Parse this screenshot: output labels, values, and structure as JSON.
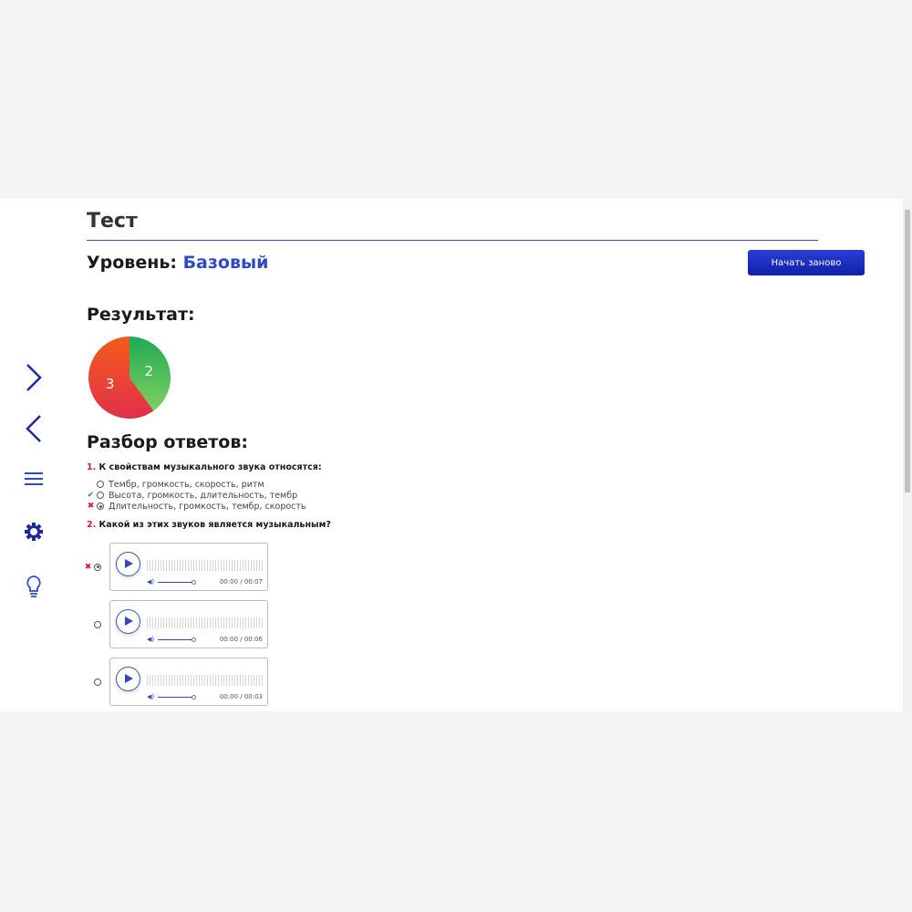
{
  "header": {
    "title": "Тест",
    "level_label": "Уровень:",
    "level_value": "Базовый",
    "restart_button": "Начать заново"
  },
  "result": {
    "heading": "Результат:"
  },
  "chart_data": {
    "type": "pie",
    "slices": [
      {
        "label": "2",
        "value": 2,
        "color": "#3cba5c"
      },
      {
        "label": "3",
        "value": 3,
        "color": "#e8402f"
      }
    ]
  },
  "review": {
    "heading": "Разбор ответов:",
    "questions": [
      {
        "number": "1.",
        "text": "К свойствам музыкального звука относятся:",
        "options": [
          {
            "text": "Тембр, громкость, скорость, ритм",
            "selected": false,
            "mark": ""
          },
          {
            "text": "Высота, громкость, длительность, тембр",
            "selected": false,
            "mark": "✔"
          },
          {
            "text": "Длительность, громкость, тембр, скорость",
            "selected": true,
            "mark": "✖"
          }
        ]
      },
      {
        "number": "2.",
        "text": "Какой из этих звуков является музыкальным?",
        "options": [
          {
            "time": "00:00 / 00:07",
            "selected": true,
            "mark": "✖"
          },
          {
            "time": "00:00 / 00:06",
            "selected": false,
            "mark": ""
          },
          {
            "time": "00:00 / 00:03",
            "selected": false,
            "mark": ""
          }
        ]
      }
    ]
  },
  "sidebar": {
    "icons": [
      "chevron-right-icon",
      "chevron-left-icon",
      "menu-icon",
      "gear-icon",
      "lightbulb-icon"
    ]
  },
  "colors": {
    "accent": "#2f49c4",
    "correct": "#2a9a3a",
    "wrong": "#d0202a"
  }
}
